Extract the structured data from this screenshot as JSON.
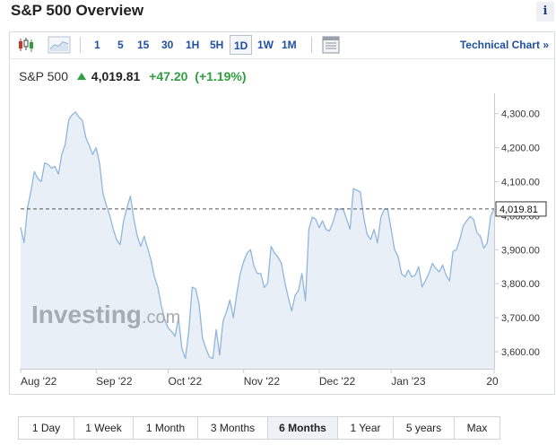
{
  "page": {
    "title": "S&P 500 Overview",
    "info_icon": "i"
  },
  "toolbar": {
    "chart_type_icons": [
      "candlestick-icon",
      "area-chart-icon"
    ],
    "intervals": [
      "1",
      "5",
      "15",
      "30",
      "1H",
      "5H",
      "1D",
      "1W",
      "1M"
    ],
    "active_interval": "1D",
    "table_icon": "table-icon",
    "technical_chart_label": "Technical Chart",
    "technical_chart_arrow": "»"
  },
  "quote": {
    "name": "S&P 500",
    "price": "4,019.81",
    "change": "+47.20",
    "change_pct": "(+1.19%)",
    "direction_icon": "up-arrow-icon"
  },
  "watermark": {
    "brand": "Investing",
    "suffix": ".com"
  },
  "colors": {
    "line": "#8fb6dc",
    "fill": "#e9eff7",
    "up": "#2e9e3f",
    "link": "#1f4fa0"
  },
  "chart_data": {
    "type": "area",
    "y_ticks": [
      "4,300.00",
      "4,200.00",
      "4,100.00",
      "4,000.00",
      "3,900.00",
      "3,800.00",
      "3,700.00",
      "3,600.00"
    ],
    "x_ticks": [
      "Aug '22",
      "Sep '22",
      "Oct '22",
      "Nov '22",
      "Dec '22",
      "Jan '23",
      "20"
    ],
    "last_price_label": "4,019.81",
    "last_price": 4019.81,
    "ylim": [
      3550,
      4360
    ],
    "grid": false,
    "series": [
      {
        "values": [
          3966,
          3921,
          4023,
          4072,
          4130,
          4110,
          4100,
          4155,
          4151,
          4140,
          4145,
          4122,
          4180,
          4210,
          4282,
          4297,
          4305,
          4290,
          4280,
          4230,
          4207,
          4180,
          4200,
          4155,
          4065,
          4030,
          4000,
          3960,
          3930,
          3915,
          3985,
          4024,
          4058,
          3990,
          3940,
          3910,
          3940,
          3905,
          3870,
          3820,
          3790,
          3735,
          3695,
          3670,
          3660,
          3645,
          3700,
          3610,
          3580,
          3660,
          3790,
          3785,
          3740,
          3640,
          3610,
          3585,
          3580,
          3665,
          3590,
          3690,
          3718,
          3752,
          3700,
          3770,
          3830,
          3865,
          3890,
          3900,
          3852,
          3830,
          3830,
          3789,
          3802,
          3910,
          3890,
          3878,
          3860,
          3805,
          3760,
          3720,
          3766,
          3780,
          3830,
          3750,
          3960,
          3996,
          3990,
          3965,
          3985,
          3960,
          3955,
          3980,
          4015,
          4020,
          4020,
          3990,
          3960,
          4080,
          4075,
          4070,
          3995,
          3945,
          3930,
          3960,
          3920,
          3995,
          4020,
          4018,
          3960,
          3900,
          3880,
          3830,
          3820,
          3840,
          3820,
          3825,
          3850,
          3790,
          3810,
          3830,
          3860,
          3845,
          3835,
          3855,
          3825,
          3808,
          3895,
          3900,
          3930,
          3970,
          3985,
          3998,
          3990,
          3950,
          3940,
          3905,
          3920,
          4000,
          4019.81
        ]
      }
    ]
  },
  "range_buttons": [
    "1 Day",
    "1 Week",
    "1 Month",
    "3 Months",
    "6 Months",
    "1 Year",
    "5 years",
    "Max"
  ],
  "active_range": "6 Months"
}
